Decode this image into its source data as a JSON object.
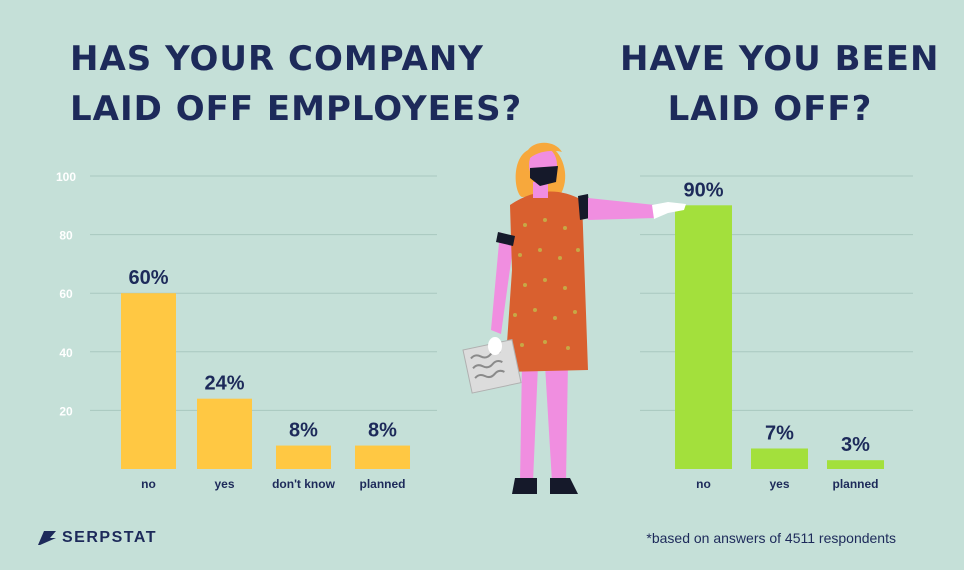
{
  "colors": {
    "background": "#c5e0d8",
    "title": "#1d2a5a",
    "bar_left": "#ffc843",
    "bar_right": "#a3e03c",
    "grid": "#a9c8bf",
    "tick": "#ffffff"
  },
  "chart_data": [
    {
      "type": "bar",
      "title_lines": [
        "HAS YOUR COMPANY",
        "LAID OFF EMPLOYEES?"
      ],
      "categories": [
        "no",
        "yes",
        "don't know",
        "planned"
      ],
      "values": [
        60,
        24,
        8,
        8
      ],
      "value_labels": [
        "60%",
        "24%",
        "8%",
        "8%"
      ],
      "yticks": [
        20,
        40,
        60,
        80,
        100
      ],
      "ytick_labels": [
        "20",
        "40",
        "60",
        "80",
        "100"
      ],
      "ylim": [
        0,
        100
      ],
      "grid": true
    },
    {
      "type": "bar",
      "title_lines": [
        "HAVE YOU BEEN",
        "LAID OFF?"
      ],
      "categories": [
        "no",
        "yes",
        "planned"
      ],
      "values": [
        90,
        7,
        3
      ],
      "value_labels": [
        "90%",
        "7%",
        "3%"
      ],
      "ylim": [
        0,
        100
      ],
      "grid": true
    }
  ],
  "footer": {
    "logo_text": "SERPSTAT",
    "note": "*based on answers of 4511 respondents"
  },
  "icons": [
    "serpstat-logo-icon",
    "person-illustration"
  ]
}
